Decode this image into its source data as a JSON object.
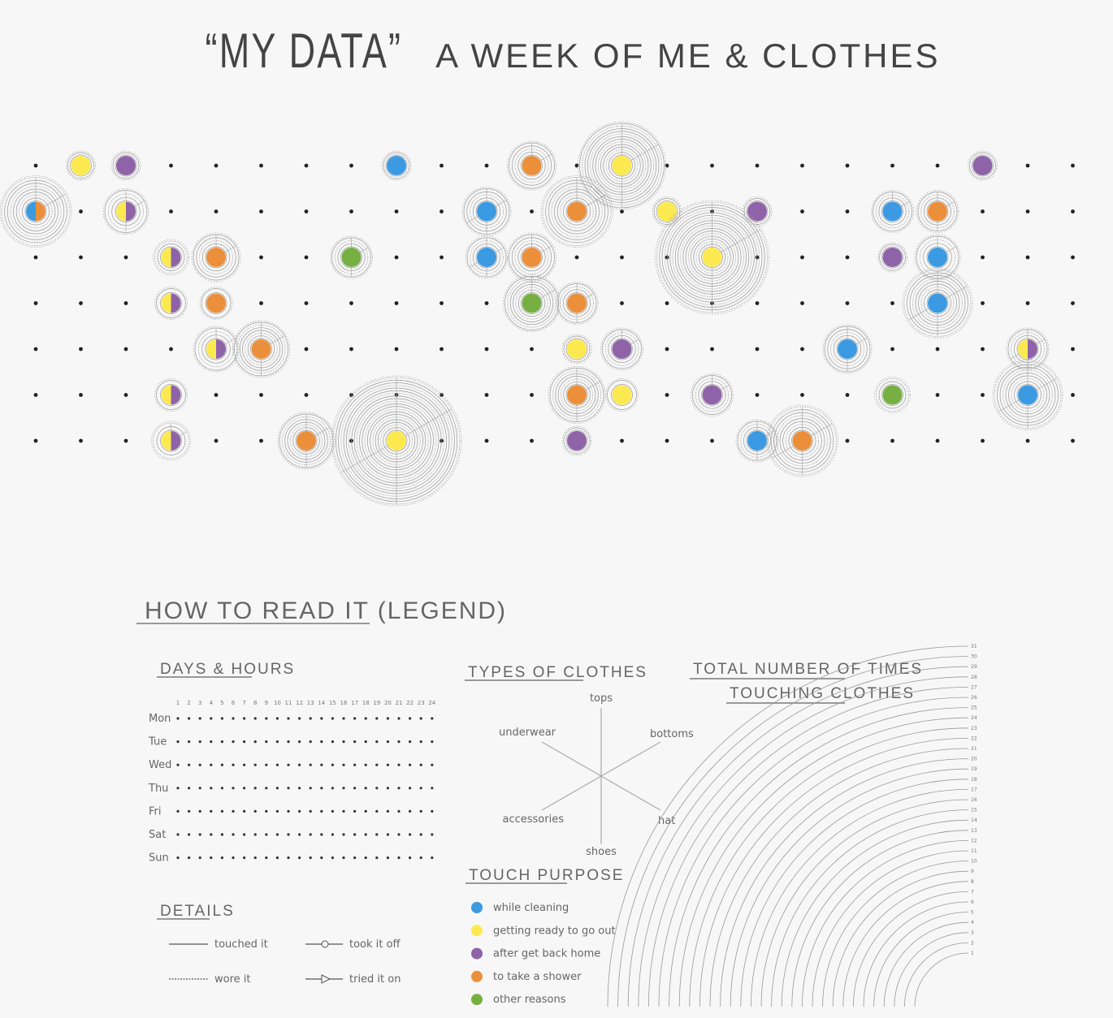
{
  "title": {
    "main": "“MY DATA”",
    "sub": "A WEEK OF ME & CLOTHES"
  },
  "colors": {
    "cleaning": "#3b9ae1",
    "going_out": "#fce94f",
    "back_home": "#8e63a8",
    "shower": "#ec8f3a",
    "other": "#76b043",
    "dot": "#222222",
    "ring": "#999999"
  },
  "grid": {
    "rows": 7,
    "cols": 24
  },
  "events": [
    {
      "row": 0,
      "col": 1,
      "c1": "going_out",
      "r": 16
    },
    {
      "row": 0,
      "col": 2,
      "c1": "back_home",
      "r": 16
    },
    {
      "row": 0,
      "col": 8,
      "c1": "cleaning",
      "r": 16
    },
    {
      "row": 0,
      "col": 11,
      "c1": "shower",
      "r": 28
    },
    {
      "row": 0,
      "col": 13,
      "c1": "going_out",
      "r": 52
    },
    {
      "row": 0,
      "col": 21,
      "c1": "back_home",
      "r": 16
    },
    {
      "row": 1,
      "col": 0,
      "c1": "cleaning",
      "c2": "shower",
      "r": 42
    },
    {
      "row": 1,
      "col": 2,
      "c1": "going_out",
      "c2": "back_home",
      "r": 26
    },
    {
      "row": 1,
      "col": 10,
      "c1": "cleaning",
      "r": 28
    },
    {
      "row": 1,
      "col": 12,
      "c1": "shower",
      "r": 42
    },
    {
      "row": 1,
      "col": 14,
      "c1": "going_out",
      "r": 16
    },
    {
      "row": 1,
      "col": 16,
      "c1": "back_home",
      "r": 16
    },
    {
      "row": 1,
      "col": 19,
      "c1": "cleaning",
      "r": 24
    },
    {
      "row": 1,
      "col": 20,
      "c1": "shower",
      "r": 24
    },
    {
      "row": 2,
      "col": 3,
      "c1": "going_out",
      "c2": "back_home",
      "r": 20
    },
    {
      "row": 2,
      "col": 4,
      "c1": "shower",
      "r": 28
    },
    {
      "row": 2,
      "col": 7,
      "c1": "other",
      "r": 24
    },
    {
      "row": 2,
      "col": 10,
      "c1": "cleaning",
      "r": 24
    },
    {
      "row": 2,
      "col": 11,
      "c1": "shower",
      "r": 28
    },
    {
      "row": 2,
      "col": 15,
      "c1": "going_out",
      "r": 68
    },
    {
      "row": 2,
      "col": 19,
      "c1": "back_home",
      "r": 16
    },
    {
      "row": 2,
      "col": 20,
      "c1": "cleaning",
      "r": 26
    },
    {
      "row": 3,
      "col": 3,
      "c1": "going_out",
      "c2": "back_home",
      "r": 18
    },
    {
      "row": 3,
      "col": 4,
      "c1": "shower",
      "r": 18
    },
    {
      "row": 3,
      "col": 11,
      "c1": "other",
      "r": 33
    },
    {
      "row": 3,
      "col": 12,
      "c1": "shower",
      "r": 24
    },
    {
      "row": 3,
      "col": 20,
      "c1": "cleaning",
      "r": 41
    },
    {
      "row": 4,
      "col": 4,
      "c1": "going_out",
      "c2": "back_home",
      "r": 26
    },
    {
      "row": 4,
      "col": 5,
      "c1": "shower",
      "r": 33
    },
    {
      "row": 4,
      "col": 12,
      "c1": "going_out",
      "r": 16
    },
    {
      "row": 4,
      "col": 13,
      "c1": "back_home",
      "r": 24
    },
    {
      "row": 4,
      "col": 18,
      "c1": "cleaning",
      "r": 28
    },
    {
      "row": 4,
      "col": 22,
      "c1": "going_out",
      "c2": "back_home",
      "r": 24
    },
    {
      "row": 5,
      "col": 3,
      "c1": "going_out",
      "c2": "back_home",
      "r": 18
    },
    {
      "row": 5,
      "col": 12,
      "c1": "shower",
      "r": 33
    },
    {
      "row": 5,
      "col": 13,
      "c1": "going_out",
      "r": 18
    },
    {
      "row": 5,
      "col": 15,
      "c1": "back_home",
      "r": 24
    },
    {
      "row": 5,
      "col": 19,
      "c1": "other",
      "r": 20
    },
    {
      "row": 5,
      "col": 22,
      "c1": "cleaning",
      "r": 41
    },
    {
      "row": 6,
      "col": 3,
      "c1": "going_out",
      "c2": "back_home",
      "r": 22
    },
    {
      "row": 6,
      "col": 6,
      "c1": "shower",
      "r": 33
    },
    {
      "row": 6,
      "col": 8,
      "c1": "going_out",
      "r": 78
    },
    {
      "row": 6,
      "col": 12,
      "c1": "back_home",
      "r": 16
    },
    {
      "row": 6,
      "col": 16,
      "c1": "cleaning",
      "r": 24
    },
    {
      "row": 6,
      "col": 17,
      "c1": "shower",
      "r": 42
    }
  ],
  "legend": {
    "heading": "HOW TO READ IT (LEGEND)",
    "days_hours": {
      "heading": "DAYS & HOURS",
      "hours": [
        "1",
        "2",
        "3",
        "4",
        "5",
        "6",
        "7",
        "8",
        "9",
        "10",
        "11",
        "12",
        "13",
        "14",
        "15",
        "16",
        "17",
        "18",
        "19",
        "20",
        "21",
        "22",
        "23",
        "24"
      ],
      "days": [
        "Mon",
        "Tue",
        "Wed",
        "Thu",
        "Fri",
        "Sat",
        "Sun"
      ]
    },
    "details": {
      "heading": "DETAILS",
      "touched": "touched it",
      "wore": "wore it",
      "took_off": "took it off",
      "tried_on": "tried it on"
    },
    "types": {
      "heading": "TYPES OF CLOTHES",
      "tops": "tops",
      "bottoms": "bottoms",
      "hat": "hat",
      "shoes": "shoes",
      "accessories": "accessories",
      "underwear": "underwear"
    },
    "purpose": {
      "heading": "TOUCH PURPOSE",
      "items": [
        {
          "label": "while cleaning",
          "color": "#3b9ae1"
        },
        {
          "label": "getting ready to go out",
          "color": "#fce94f"
        },
        {
          "label": "after get back home",
          "color": "#8e63a8"
        },
        {
          "label": "to take a shower",
          "color": "#ec8f3a"
        },
        {
          "label": "other reasons",
          "color": "#76b043"
        }
      ]
    },
    "total": {
      "heading1": "TOTAL NUMBER OF TIMES",
      "heading2": "TOUCHING CLOTHES",
      "counts": [
        "1",
        "2",
        "3",
        "4",
        "5",
        "6",
        "7",
        "8",
        "9",
        "10",
        "11",
        "12",
        "13",
        "14",
        "15",
        "16",
        "17",
        "18",
        "19",
        "20",
        "21",
        "22",
        "23",
        "24",
        "25",
        "26",
        "27",
        "28",
        "29",
        "30",
        "31"
      ]
    }
  }
}
